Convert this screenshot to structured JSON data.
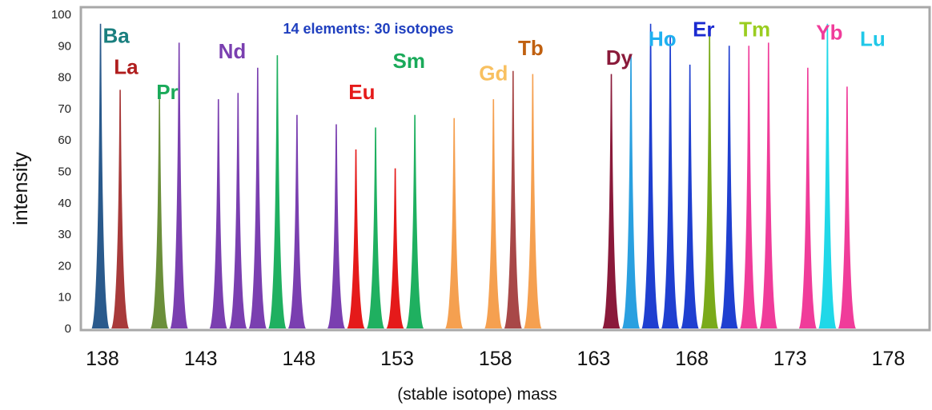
{
  "chart_data": {
    "type": "bar",
    "title": "",
    "xlabel": "(stable isotope) mass",
    "ylabel": "intensity",
    "annotation": "14 elements: 30 isotopes",
    "annotation_color": "#1f3fbf",
    "xlim": [
      136.9,
      180.1
    ],
    "ylim": [
      0,
      100
    ],
    "x_ticks": [
      138,
      143,
      148,
      153,
      158,
      163,
      168,
      173,
      178
    ],
    "y_ticks": [
      0,
      10,
      20,
      30,
      40,
      50,
      60,
      70,
      80,
      90,
      100
    ],
    "grid": false,
    "series": [
      {
        "name": "Ba",
        "color": "#2a5a8c",
        "label_color": "#1a7f7f",
        "label_x": 138.7,
        "label_y": 91,
        "peaks": [
          [
            137.9,
            97
          ]
        ]
      },
      {
        "name": "La",
        "color": "#a83a3a",
        "label_color": "#b01e1e",
        "label_x": 139.2,
        "label_y": 81,
        "peaks": [
          [
            138.9,
            76
          ]
        ]
      },
      {
        "name": "Pr",
        "color": "#6b8f3a",
        "label_color": "#1aaa5a",
        "label_x": 141.3,
        "label_y": 73,
        "peaks": [
          [
            140.9,
            73
          ]
        ]
      },
      {
        "name": "Nd",
        "color": "#7a3fb0",
        "label_color": "#7a3fb0",
        "label_x": 144.6,
        "label_y": 86,
        "peaks": [
          [
            141.9,
            91
          ],
          [
            143.9,
            73
          ],
          [
            144.9,
            75
          ],
          [
            145.9,
            83
          ],
          [
            147.9,
            68
          ],
          [
            149.9,
            65
          ]
        ]
      },
      {
        "name": "Sm",
        "color": "#1fb060",
        "label_color": "#1aaa5a",
        "label_x": 153.6,
        "label_y": 83,
        "peaks": [
          [
            146.9,
            87
          ],
          [
            151.9,
            64
          ],
          [
            153.9,
            68
          ]
        ]
      },
      {
        "name": "Eu",
        "color": "#e51a1a",
        "label_color": "#e51a1a",
        "label_x": 151.2,
        "label_y": 73,
        "peaks": [
          [
            150.9,
            57
          ],
          [
            152.9,
            51
          ]
        ]
      },
      {
        "name": "Gd",
        "color": "#f5a050",
        "label_color": "#f8c060",
        "label_x": 157.9,
        "label_y": 79,
        "peaks": [
          [
            155.9,
            67
          ],
          [
            157.9,
            73
          ],
          [
            159.9,
            81
          ]
        ]
      },
      {
        "name": "Tb",
        "color": "#a84848",
        "label_color": "#c06010",
        "label_x": 159.8,
        "label_y": 87,
        "peaks": [
          [
            158.9,
            82
          ]
        ]
      },
      {
        "name": "Dy",
        "color": "#8a1a3a",
        "label_color": "#8a1a3a",
        "label_x": 164.3,
        "label_y": 84,
        "peaks": [
          [
            163.9,
            81
          ]
        ]
      },
      {
        "name": "Ho",
        "color": "#2aa0e0",
        "label_color": "#1fb0f0",
        "label_x": 166.5,
        "label_y": 90,
        "peaks": [
          [
            164.9,
            87
          ]
        ]
      },
      {
        "name": "Er",
        "color": "#1f3fd0",
        "label_color": "#1a2ad0",
        "label_x": 168.6,
        "label_y": 93,
        "peaks": [
          [
            165.9,
            97
          ],
          [
            166.9,
            93
          ],
          [
            167.9,
            84
          ],
          [
            169.9,
            90
          ]
        ]
      },
      {
        "name": "Tm",
        "color": "#7aaa1a",
        "label_color": "#9acd20",
        "label_x": 171.2,
        "label_y": 93,
        "peaks": [
          [
            168.9,
            95
          ]
        ]
      },
      {
        "name": "Yb",
        "color": "#f03c9a",
        "label_color": "#f03c9a",
        "label_x": 175.0,
        "label_y": 92,
        "peaks": [
          [
            170.9,
            90
          ],
          [
            171.9,
            91
          ],
          [
            173.9,
            83
          ],
          [
            175.9,
            77
          ]
        ]
      },
      {
        "name": "Lu",
        "color": "#20d8e8",
        "label_color": "#20c8e8",
        "label_x": 177.2,
        "label_y": 90,
        "peaks": [
          [
            174.9,
            97
          ]
        ]
      }
    ]
  }
}
